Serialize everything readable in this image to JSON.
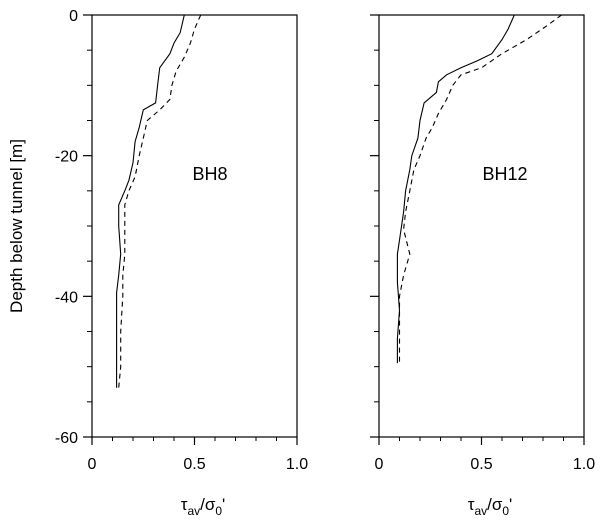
{
  "chart_data": [
    {
      "type": "line",
      "title": "",
      "annotation": "BH8",
      "xlabel": {
        "main": "τ",
        "sub1": "av",
        "slash": "/σ",
        "sub2": "0",
        "prime": "'"
      },
      "ylabel": "Depth below  tunnel  [m]",
      "xlim": [
        0,
        1.0
      ],
      "ylim": [
        -60,
        0
      ],
      "x_ticks": [
        "0",
        "0.5",
        "1.0"
      ],
      "y_ticks": [
        "0",
        "-20",
        "-40",
        "-60"
      ],
      "grid": false,
      "series": [
        {
          "style": "solid",
          "points": [
            [
              0.45,
              0
            ],
            [
              0.43,
              -2.5
            ],
            [
              0.4,
              -4
            ],
            [
              0.38,
              -5.5
            ],
            [
              0.33,
              -7.5
            ],
            [
              0.32,
              -10
            ],
            [
              0.31,
              -12.5
            ],
            [
              0.25,
              -13.5
            ],
            [
              0.23,
              -16
            ],
            [
              0.21,
              -18
            ],
            [
              0.2,
              -21
            ],
            [
              0.18,
              -23.5
            ],
            [
              0.16,
              -25
            ],
            [
              0.13,
              -27
            ],
            [
              0.13,
              -30
            ],
            [
              0.14,
              -34
            ],
            [
              0.13,
              -37
            ],
            [
              0.12,
              -39.5
            ],
            [
              0.12,
              -45
            ],
            [
              0.12,
              -50
            ],
            [
              0.12,
              -53
            ]
          ]
        },
        {
          "style": "dashed",
          "points": [
            [
              0.53,
              0
            ],
            [
              0.5,
              -2
            ],
            [
              0.48,
              -4
            ],
            [
              0.45,
              -6
            ],
            [
              0.41,
              -8
            ],
            [
              0.39,
              -10
            ],
            [
              0.38,
              -12
            ],
            [
              0.33,
              -13.5
            ],
            [
              0.27,
              -15
            ],
            [
              0.25,
              -17.5
            ],
            [
              0.23,
              -20
            ],
            [
              0.21,
              -23
            ],
            [
              0.18,
              -25
            ],
            [
              0.16,
              -27
            ],
            [
              0.16,
              -30
            ],
            [
              0.16,
              -34
            ],
            [
              0.15,
              -37
            ],
            [
              0.15,
              -40
            ],
            [
              0.14,
              -45
            ],
            [
              0.14,
              -50
            ],
            [
              0.13,
              -53
            ]
          ]
        }
      ]
    },
    {
      "type": "line",
      "title": "",
      "annotation": "BH12",
      "xlabel": {
        "main": "τ",
        "sub1": "av",
        "slash": "/σ",
        "sub2": "0",
        "prime": "'"
      },
      "ylabel": "",
      "xlim": [
        0,
        1.0
      ],
      "ylim": [
        -60,
        0
      ],
      "x_ticks": [
        "0",
        "0.5",
        "1.0"
      ],
      "y_ticks": [],
      "grid": false,
      "series": [
        {
          "style": "solid",
          "points": [
            [
              0.66,
              0
            ],
            [
              0.63,
              -2
            ],
            [
              0.6,
              -3.5
            ],
            [
              0.55,
              -5.5
            ],
            [
              0.48,
              -6.5
            ],
            [
              0.4,
              -7.5
            ],
            [
              0.33,
              -8.5
            ],
            [
              0.29,
              -9.5
            ],
            [
              0.28,
              -11
            ],
            [
              0.22,
              -12.5
            ],
            [
              0.2,
              -15
            ],
            [
              0.19,
              -17.5
            ],
            [
              0.16,
              -20
            ],
            [
              0.15,
              -22
            ],
            [
              0.13,
              -25
            ],
            [
              0.12,
              -28
            ],
            [
              0.1,
              -32
            ],
            [
              0.09,
              -34
            ],
            [
              0.09,
              -38
            ],
            [
              0.1,
              -42
            ],
            [
              0.09,
              -46
            ],
            [
              0.09,
              -49.5
            ]
          ]
        },
        {
          "style": "dashed",
          "points": [
            [
              0.89,
              0
            ],
            [
              0.82,
              -1.5
            ],
            [
              0.72,
              -3.5
            ],
            [
              0.6,
              -5.5
            ],
            [
              0.5,
              -7.5
            ],
            [
              0.4,
              -8.5
            ],
            [
              0.36,
              -10
            ],
            [
              0.33,
              -12
            ],
            [
              0.29,
              -14
            ],
            [
              0.26,
              -16
            ],
            [
              0.23,
              -17.5
            ],
            [
              0.2,
              -20
            ],
            [
              0.17,
              -22
            ],
            [
              0.15,
              -25
            ],
            [
              0.13,
              -28
            ],
            [
              0.12,
              -30.5
            ],
            [
              0.15,
              -34
            ],
            [
              0.12,
              -37
            ],
            [
              0.1,
              -40
            ],
            [
              0.1,
              -45
            ],
            [
              0.1,
              -49.5
            ]
          ]
        }
      ]
    }
  ]
}
